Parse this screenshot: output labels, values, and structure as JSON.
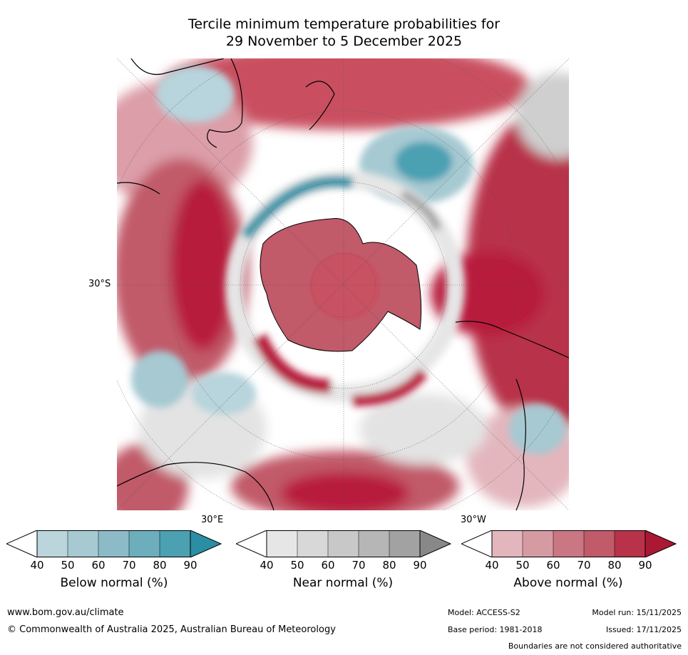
{
  "title": {
    "line1": "Tercile minimum temperature probabilities for",
    "line2": "29 November to 5 December 2025"
  },
  "map": {
    "lat_label": "30°S",
    "lon_label_east": "30°E",
    "lon_label_west": "30°W",
    "projection": "south-polar-stereographic",
    "colors": {
      "ocean_bg": "#ffffff",
      "above_dark": "#b81f3c",
      "above_mid": "#c94f60",
      "above_light": "#e0aab2",
      "below_dark": "#2e94a8",
      "below_light": "#b8d4dc",
      "near": "#d5d5d5",
      "coast": "#000000"
    }
  },
  "colorbars": [
    {
      "title": "Below normal (%)",
      "ticks": [
        "40",
        "50",
        "60",
        "70",
        "80",
        "90"
      ],
      "colors": [
        "#ffffff",
        "#bad5dc",
        "#a6c9d2",
        "#8cbac7",
        "#6daebd",
        "#4ba0b2",
        "#2c8ea4"
      ]
    },
    {
      "title": "Near normal (%)",
      "ticks": [
        "40",
        "50",
        "60",
        "70",
        "80",
        "90"
      ],
      "colors": [
        "#ffffff",
        "#e6e6e6",
        "#d8d8d8",
        "#c8c8c8",
        "#b6b6b6",
        "#a2a2a2",
        "#888888"
      ]
    },
    {
      "title": "Above normal (%)",
      "ticks": [
        "40",
        "50",
        "60",
        "70",
        "80",
        "90"
      ],
      "colors": [
        "#ffffff",
        "#e3b6bd",
        "#d69aa2",
        "#ca7783",
        "#c15a69",
        "#b8324a",
        "#ab1834"
      ]
    }
  ],
  "footer": {
    "website": "www.bom.gov.au/climate",
    "copyright": "© Commonwealth of Australia 2025, Australian Bureau of Meteorology",
    "model": "Model: ACCESS-S2",
    "model_run": "Model run: 15/11/2025",
    "base_period": "Base period: 1981-2018",
    "issued": "Issued: 17/11/2025",
    "disclaimer": "Boundaries are not considered authoritative"
  }
}
